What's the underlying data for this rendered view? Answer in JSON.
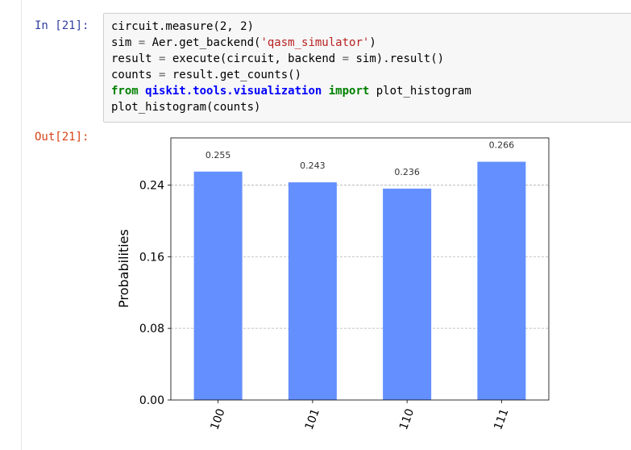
{
  "cell": {
    "in_prompt": "In [21]:",
    "out_prompt": "Out[21]:",
    "code_lines": [
      [
        {
          "t": "circuit.measure(2, 2)",
          "c": ""
        }
      ],
      [
        {
          "t": "sim ",
          "c": ""
        },
        {
          "t": "=",
          "c": "op"
        },
        {
          "t": " Aer.get_backend(",
          "c": ""
        },
        {
          "t": "'qasm_simulator'",
          "c": "str"
        },
        {
          "t": ")",
          "c": ""
        }
      ],
      [
        {
          "t": "result ",
          "c": ""
        },
        {
          "t": "=",
          "c": "op"
        },
        {
          "t": " execute(circuit, backend ",
          "c": ""
        },
        {
          "t": "=",
          "c": "op"
        },
        {
          "t": " sim).result()",
          "c": ""
        }
      ],
      [
        {
          "t": "counts ",
          "c": ""
        },
        {
          "t": "=",
          "c": "op"
        },
        {
          "t": " result.get_counts()",
          "c": ""
        }
      ],
      [
        {
          "t": "from",
          "c": "kw"
        },
        {
          "t": " ",
          "c": ""
        },
        {
          "t": "qiskit.tools.visualization",
          "c": "mod"
        },
        {
          "t": " ",
          "c": ""
        },
        {
          "t": "import",
          "c": "kw"
        },
        {
          "t": " plot_histogram",
          "c": ""
        }
      ],
      [
        {
          "t": "plot_histogram(counts)",
          "c": ""
        }
      ]
    ]
  },
  "chart_data": {
    "type": "bar",
    "categories": [
      "100",
      "101",
      "110",
      "111"
    ],
    "values": [
      0.255,
      0.243,
      0.236,
      0.266
    ],
    "value_labels": [
      "0.255",
      "0.243",
      "0.236",
      "0.266"
    ],
    "ylabel": "Probabilities",
    "xlabel": "",
    "title": "",
    "yticks": [
      "0.00",
      "0.08",
      "0.16",
      "0.24"
    ],
    "ytick_values": [
      0.0,
      0.08,
      0.16,
      0.24
    ],
    "ylim": [
      0,
      0.2926
    ],
    "grid": "horizontal dashed",
    "bar_color": "#648fff"
  }
}
